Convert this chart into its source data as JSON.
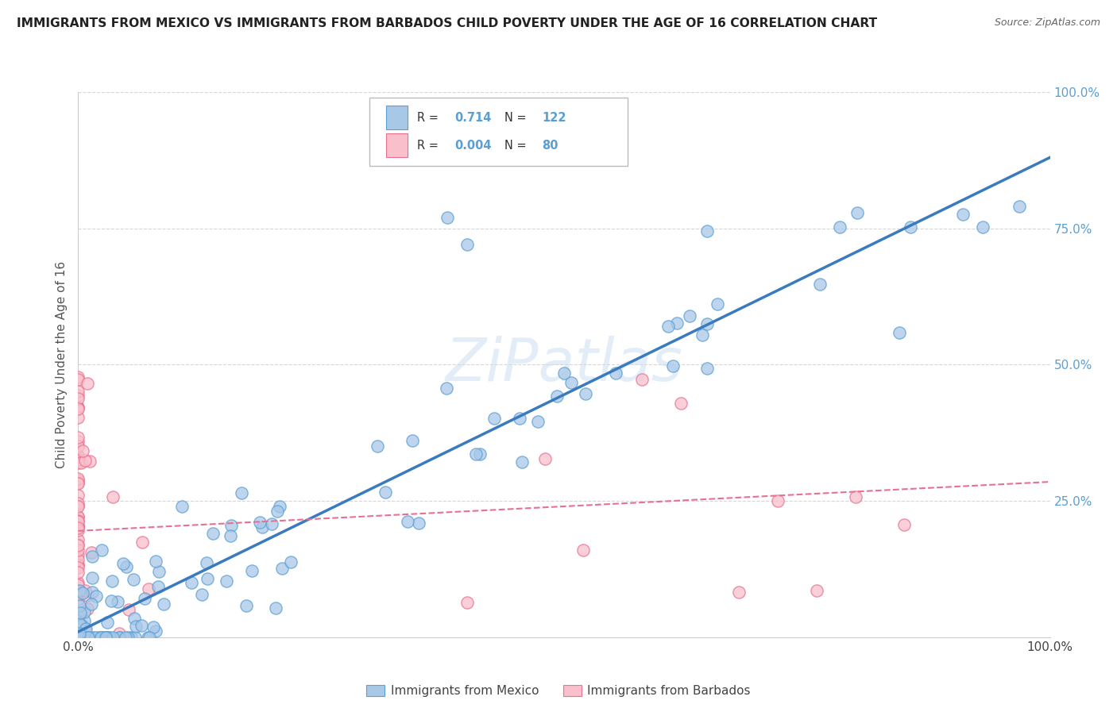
{
  "title": "IMMIGRANTS FROM MEXICO VS IMMIGRANTS FROM BARBADOS CHILD POVERTY UNDER THE AGE OF 16 CORRELATION CHART",
  "source": "Source: ZipAtlas.com",
  "ylabel": "Child Poverty Under the Age of 16",
  "legend_mexico": "Immigrants from Mexico",
  "legend_barbados": "Immigrants from Barbados",
  "R_mexico": "0.714",
  "N_mexico": "122",
  "R_barbados": "0.004",
  "N_barbados": "80",
  "color_mexico_fill": "#a8c8e8",
  "color_mexico_edge": "#5a9fd4",
  "color_barbados_fill": "#f9c0cb",
  "color_barbados_edge": "#e87090",
  "color_trend_mexico": "#3a7abf",
  "color_trend_barbados": "#e87090",
  "watermark": "ZiPatlas",
  "bg_color": "#ffffff",
  "grid_color": "#cccccc",
  "right_tick_color": "#5a9fd4"
}
